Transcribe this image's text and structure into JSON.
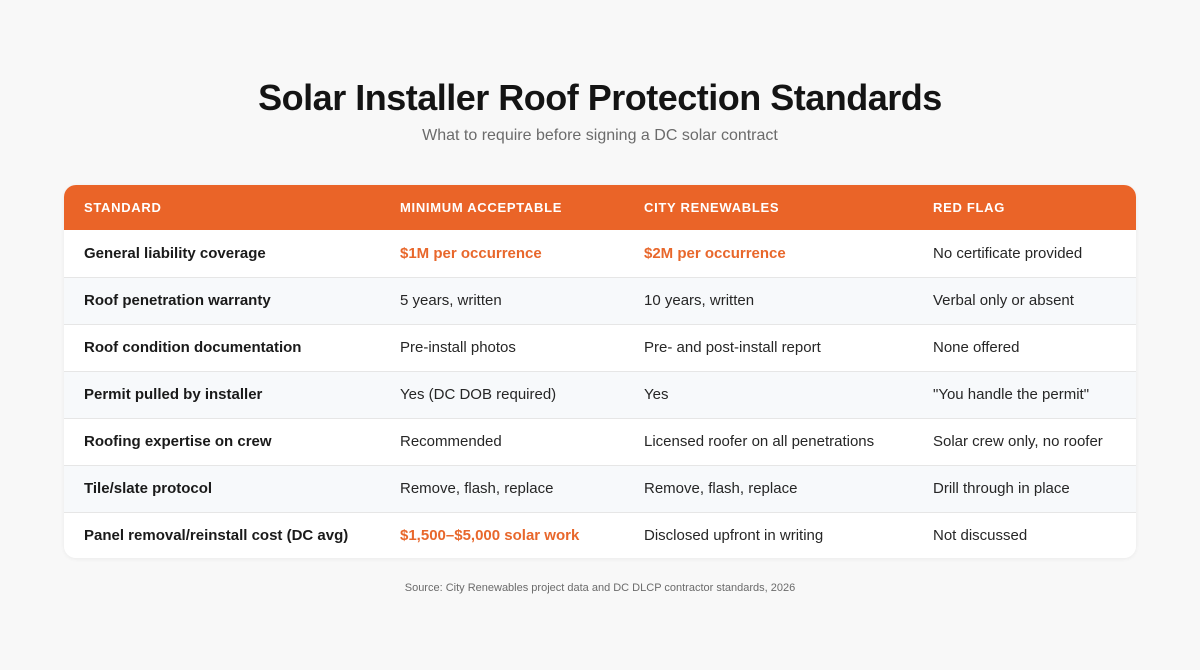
{
  "title": "Solar Installer Roof Protection Standards",
  "subtitle": "What to require before signing a DC solar contract",
  "accent_color": "#ea6428",
  "table": {
    "headers": [
      "STANDARD",
      "MINIMUM ACCEPTABLE",
      "CITY RENEWABLES",
      "RED FLAG"
    ],
    "rows": [
      [
        "General liability coverage",
        "$1M per occurrence",
        "$2M per occurrence",
        "No certificate provided"
      ],
      [
        "Roof penetration warranty",
        "5 years, written",
        "10 years, written",
        "Verbal only or absent"
      ],
      [
        "Roof condition documentation",
        "Pre-install photos",
        "Pre- and post-install report",
        "None offered"
      ],
      [
        "Permit pulled by installer",
        "Yes (DC DOB required)",
        "Yes",
        "\"You handle the permit\""
      ],
      [
        "Roofing expertise on crew",
        "Recommended",
        "Licensed roofer on all penetrations",
        "Solar crew only, no roofer"
      ],
      [
        "Tile/slate protocol",
        "Remove, flash, replace",
        "Remove, flash, replace",
        "Drill through in place"
      ],
      [
        "Panel removal/reinstall cost (DC avg)",
        "$1,500–$5,000 solar work",
        "Disclosed upfront in writing",
        "Not discussed"
      ]
    ]
  },
  "source": "Source: City Renewables project data and DC DLCP contractor standards, 2026"
}
